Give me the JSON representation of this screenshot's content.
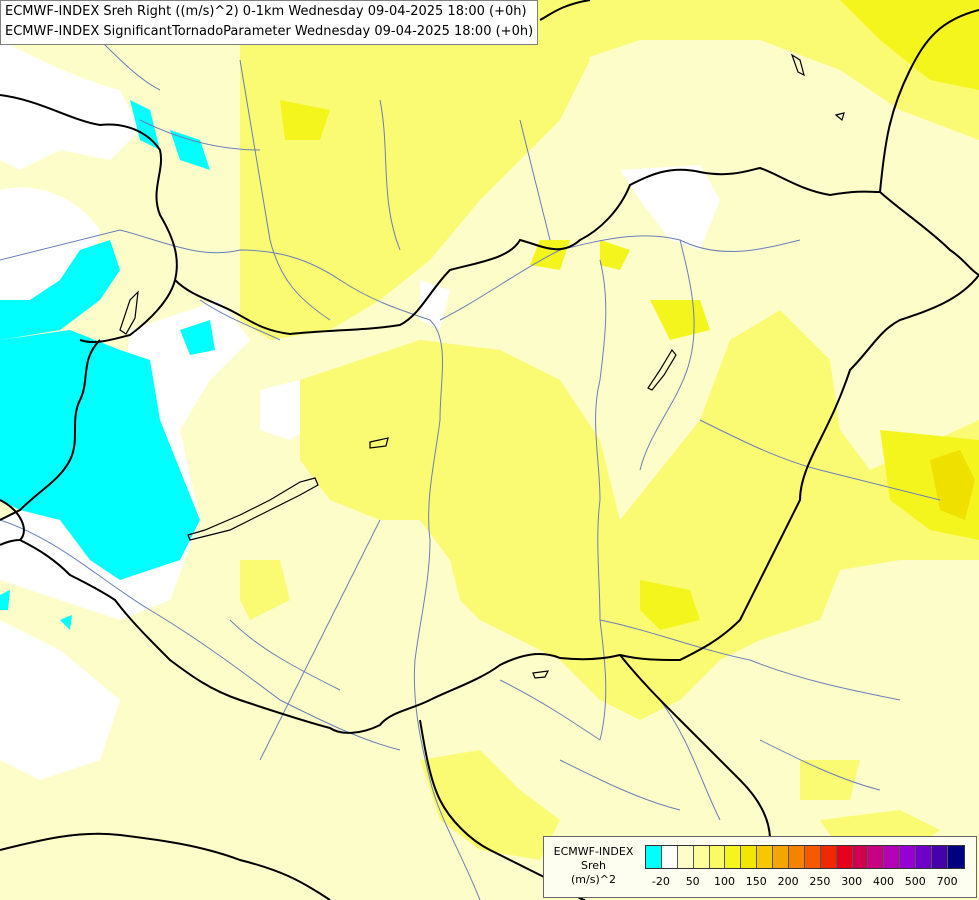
{
  "title": {
    "line1": "ECMWF-INDEX Sreh Right ((m/s)^2) 0-1km Wednesday 09-04-2025 18:00 (+0h)",
    "line2": "ECMWF-INDEX SignificantTornadoParameter Wednesday 09-04-2025 18:00 (+0h)"
  },
  "legend": {
    "line1": "ECMWF-INDEX",
    "line2": "Sreh",
    "line3": "(m/s)^2",
    "colors": [
      "#00ffff",
      "#ffffff",
      "#fdfdc9",
      "#fdfd9a",
      "#fafa64",
      "#f5f51e",
      "#f0e600",
      "#f5c800",
      "#f5a500",
      "#f58200",
      "#f55a00",
      "#f02800",
      "#e6001e",
      "#d20050",
      "#c80082",
      "#b400b4",
      "#9600d2",
      "#6e00c8",
      "#4600aa",
      "#000080"
    ],
    "ticks": [
      {
        "label": "-20",
        "index": 1
      },
      {
        "label": "50",
        "index": 3
      },
      {
        "label": "100",
        "index": 5
      },
      {
        "label": "150",
        "index": 7
      },
      {
        "label": "200",
        "index": 9
      },
      {
        "label": "250",
        "index": 11
      },
      {
        "label": "300",
        "index": 13
      },
      {
        "label": "400",
        "index": 15
      },
      {
        "label": "500",
        "index": 17
      },
      {
        "label": "700",
        "index": 19
      }
    ]
  }
}
